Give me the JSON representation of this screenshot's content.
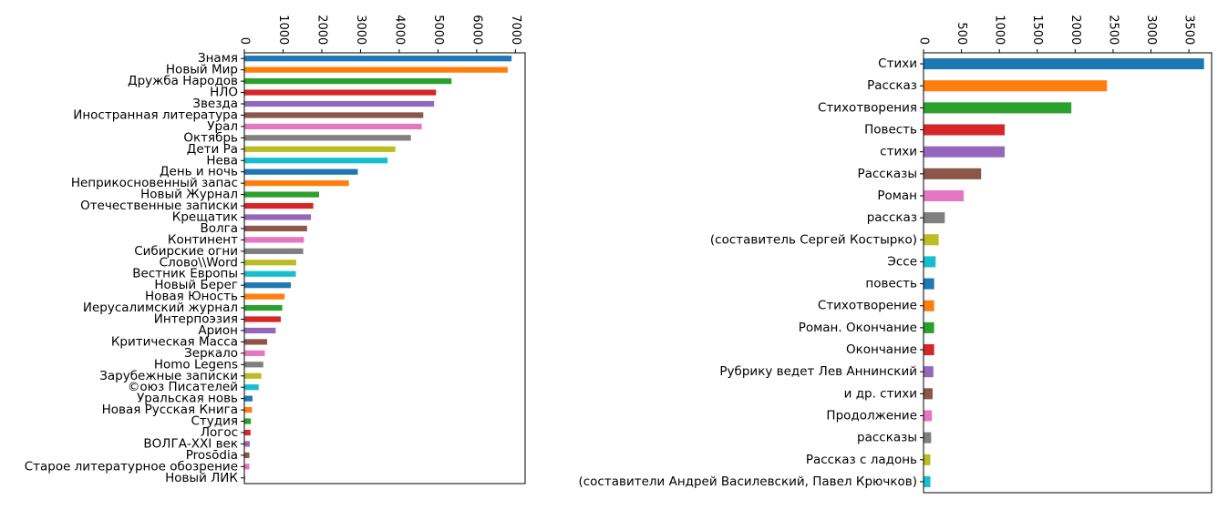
{
  "palette": [
    "#1f77b4",
    "#ff7f0e",
    "#2ca02c",
    "#d62728",
    "#9467bd",
    "#8c564b",
    "#e377c2",
    "#7f7f7f",
    "#bcbd22",
    "#17becf"
  ],
  "chart_data": [
    {
      "type": "bar",
      "orientation": "horizontal",
      "title": "",
      "xlabel": "",
      "ylabel": "",
      "xlim": [
        0,
        7250
      ],
      "x_ticks": [
        0,
        1000,
        2000,
        3000,
        4000,
        5000,
        6000,
        7000
      ],
      "x_tick_position": "top",
      "grid": false,
      "categories": [
        "Знамя",
        "Новый Мир",
        "Дружба Народов",
        "НЛО",
        "Звезда",
        "Иностранная литература",
        "Урал",
        "Октябрь",
        "Дети Ра",
        "Нева",
        "День и ночь",
        "Неприкосновенный запас",
        "Новый Журнал",
        "Отечественные записки",
        "Крещатик",
        "Волга",
        "Континент",
        "Сибирские огни",
        "Слово\\\\Word",
        "Вестник Европы",
        "Новый Берег",
        "Новая Юность",
        "Иерусалимский журнал",
        "Интерпоэзия",
        "Арион",
        "Критическая Масса",
        "Зеркало",
        "Homo Legens",
        "Зарубежные записки",
        "©оюз  Писателей",
        "Уральская новь",
        "Новая Русская Книга",
        "Студия",
        "Логос",
        "ВОЛГА-XXI век",
        "Prosōdia",
        "Старое литературное обозрение",
        "Новый ЛИК"
      ],
      "values": [
        6900,
        6800,
        5350,
        4950,
        4900,
        4620,
        4580,
        4300,
        3900,
        3700,
        2930,
        2700,
        1930,
        1780,
        1720,
        1620,
        1540,
        1520,
        1340,
        1330,
        1200,
        1040,
        980,
        940,
        810,
        590,
        530,
        490,
        440,
        370,
        210,
        200,
        170,
        160,
        140,
        130,
        130,
        20
      ]
    },
    {
      "type": "bar",
      "orientation": "horizontal",
      "title": "",
      "xlabel": "",
      "ylabel": "",
      "xlim": [
        0,
        3800
      ],
      "x_ticks": [
        0,
        500,
        1000,
        1500,
        2000,
        2500,
        3000,
        3500
      ],
      "x_tick_position": "top",
      "grid": false,
      "categories": [
        "Стихи",
        "Рассказ",
        "Стихотворения",
        "Повесть",
        "стихи",
        "Рассказы",
        "Роман",
        "рассказ",
        "(составитель Сергей Костырко)",
        "Эссе",
        "повесть",
        "Стихотворение",
        "Роман. Окончание",
        "Окончание",
        "Рубрику ведет Лев Аннинский",
        "и др. стихи",
        "Продолжение",
        "рассказы",
        "Рассказ с ладонь",
        "(составители Андрей Василевский, Павел Крючков)"
      ],
      "values": [
        3700,
        2420,
        1950,
        1070,
        1070,
        760,
        530,
        280,
        200,
        160,
        140,
        140,
        140,
        140,
        130,
        120,
        110,
        100,
        90,
        90
      ]
    }
  ]
}
